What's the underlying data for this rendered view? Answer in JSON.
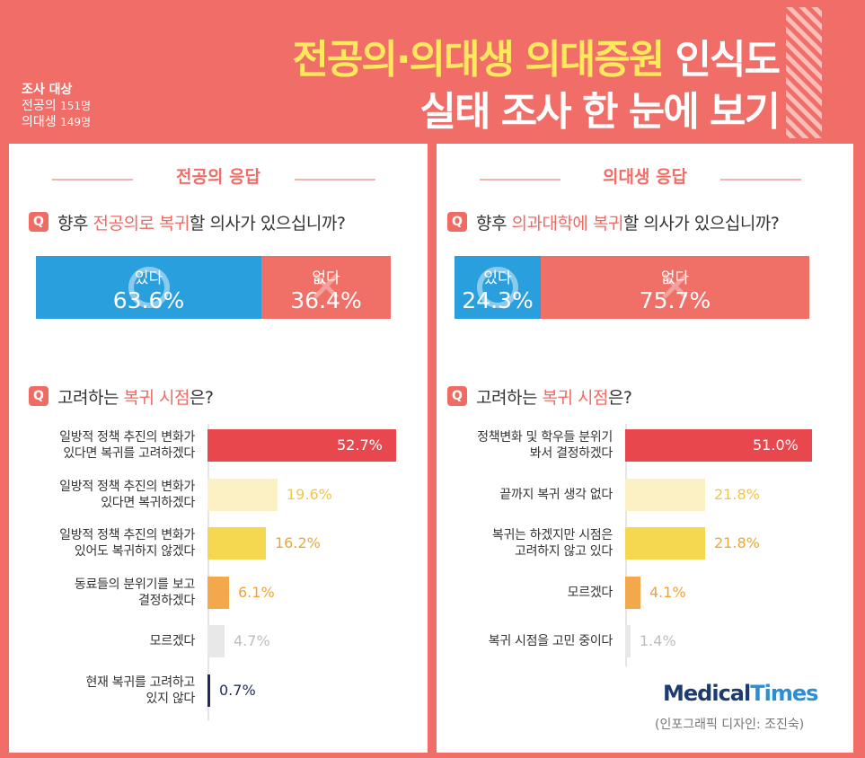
{
  "header": {
    "survey_title": "조사 대상",
    "survey_residents_label": "전공의",
    "survey_residents_count": "151명",
    "survey_students_label": "의대생",
    "survey_students_count": "149명",
    "title_line1_yellow": "전공의·의대생 의대증원",
    "title_line1_white": "인식도",
    "title_line2": "실태 조사 한 눈에 보기"
  },
  "left": {
    "section_title": "전공의 응답",
    "q1_prefix": "향후 ",
    "q1_highlight": "전공의로 복귀",
    "q1_suffix": "할 의사가 있으십니까?",
    "q2_prefix": "고려하는 ",
    "q2_highlight": "복귀 시점",
    "q2_suffix": "은?"
  },
  "right": {
    "section_title": "의대생 응답",
    "q1_prefix": "향후 ",
    "q1_highlight": "의과대학에 복귀",
    "q1_suffix": "할 의사가 있으십니까?",
    "q2_prefix": "고려하는 ",
    "q2_highlight": "복귀 시점",
    "q2_suffix": "은?"
  },
  "q_badge": "Q",
  "logo_part1": "Medical",
  "logo_part2": "Times",
  "credit": "(인포그래픽 디자인: 조진숙)",
  "colors": {
    "brand": "#f06e67",
    "yes_blue": "#2a9fde",
    "title_yellow": "#ffe85e"
  },
  "chart_data": [
    {
      "type": "bar",
      "title": "향후 전공의로 복귀할 의사가 있으십니까?",
      "group": "전공의 응답",
      "stacked": true,
      "categories": [
        "있다",
        "없다"
      ],
      "values": [
        63.6,
        36.4
      ],
      "labels": [
        "63.6%",
        "36.4%"
      ]
    },
    {
      "type": "bar",
      "title": "향후 의과대학에 복귀할 의사가 있으십니까?",
      "group": "의대생 응답",
      "stacked": true,
      "categories": [
        "있다",
        "없다"
      ],
      "values": [
        24.3,
        75.7
      ],
      "labels": [
        "24.3%",
        "75.7%"
      ]
    },
    {
      "type": "bar",
      "orientation": "horizontal",
      "title": "고려하는 복귀 시점은?",
      "group": "전공의 응답",
      "xlim": [
        0,
        52.7
      ],
      "categories": [
        "일방적 정책 추진의 변화가\n있다면 복귀를 고려하겠다",
        "일방적 정책 추진의 변화가\n있다면 복귀하겠다",
        "일방적 정책 추진의 변화가\n있어도 복귀하지 않겠다",
        "동료들의 분위기를 보고\n결정하겠다",
        "모르겠다",
        "현재 복귀를 고려하고\n있지 않다"
      ],
      "values": [
        52.7,
        19.6,
        16.2,
        6.1,
        4.7,
        0.7
      ],
      "labels": [
        "52.7%",
        "19.6%",
        "16.2%",
        "6.1%",
        "4.7%",
        "0.7%"
      ],
      "colors": [
        "#e8474d",
        "#fbf1c4",
        "#f5d84f",
        "#f2a84b",
        "#e8e8e8",
        "#1e2b58"
      ],
      "label_colors": [
        "#ffffff",
        "#f0c64a",
        "#e8a93b",
        "#f0a23a",
        "#bdbdbd",
        "#1e2b58"
      ]
    },
    {
      "type": "bar",
      "orientation": "horizontal",
      "title": "고려하는 복귀 시점은?",
      "group": "의대생 응답",
      "xlim": [
        0,
        51.0
      ],
      "categories": [
        "정책변화 및 학우들 분위기\n봐서 결정하겠다",
        "끝까지 복귀 생각 없다",
        "복귀는 하겠지만 시점은\n고려하지 않고 있다",
        "모르겠다",
        "복귀 시점을 고민 중이다"
      ],
      "values": [
        51.0,
        21.8,
        21.8,
        4.1,
        1.4
      ],
      "labels": [
        "51.0%",
        "21.8%",
        "21.8%",
        "4.1%",
        "1.4%"
      ],
      "colors": [
        "#e8474d",
        "#fbf1c4",
        "#f5d84f",
        "#f2a84b",
        "#e8e8e8"
      ],
      "label_colors": [
        "#ffffff",
        "#f0c64a",
        "#e8a93b",
        "#f0a23a",
        "#bdbdbd"
      ]
    }
  ]
}
